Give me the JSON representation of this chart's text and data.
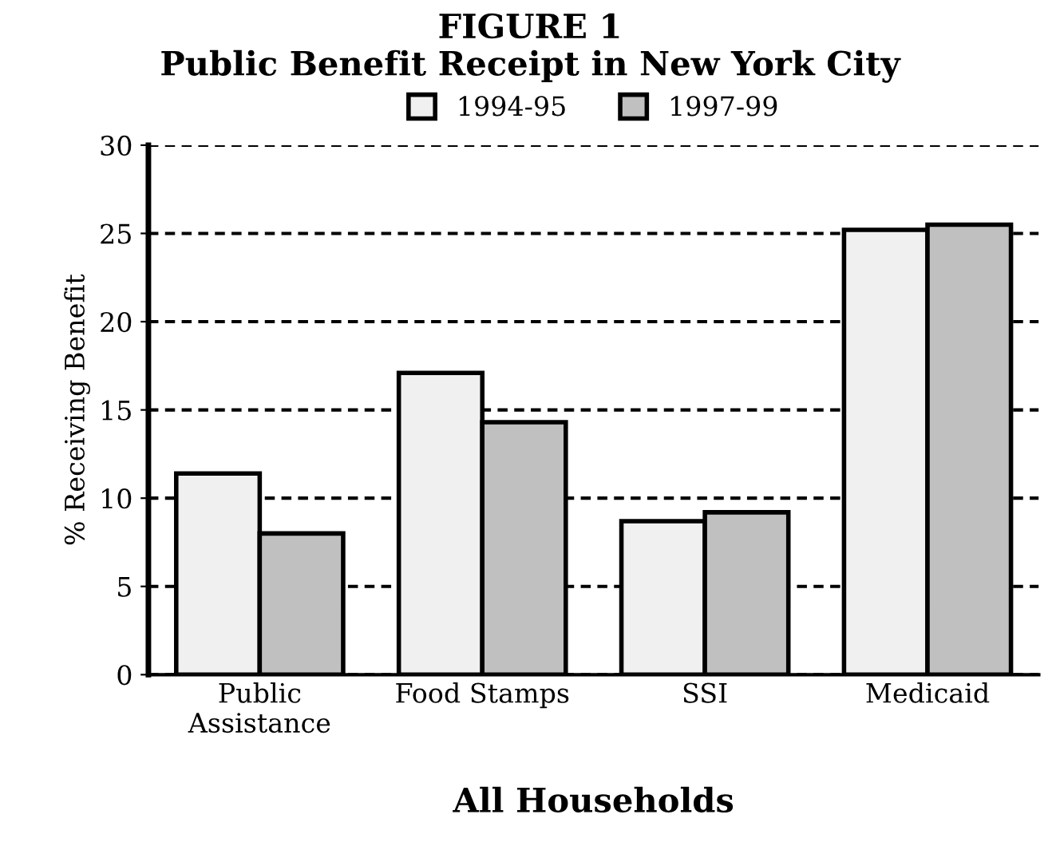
{
  "chart_data": {
    "type": "bar",
    "title": "FIGURE 1\nPublic Benefit Receipt in New York City",
    "xlabel": "All Households",
    "ylabel": "% Receiving Benefit",
    "categories": [
      "Public\nAssistance",
      "Food Stamps",
      "SSI",
      "Medicaid"
    ],
    "series": [
      {
        "name": "1994-95",
        "color": "#f0f0f0",
        "values": [
          11.4,
          17.1,
          8.7,
          25.2
        ]
      },
      {
        "name": "1997-99",
        "color": "#c0c0c0",
        "values": [
          8.0,
          14.3,
          9.2,
          25.5
        ]
      }
    ],
    "ylim": [
      0,
      30
    ],
    "yticks": [
      0,
      5,
      10,
      15,
      20,
      25,
      30
    ],
    "grid": "y",
    "legend": "top",
    "line_style": "dashed"
  }
}
